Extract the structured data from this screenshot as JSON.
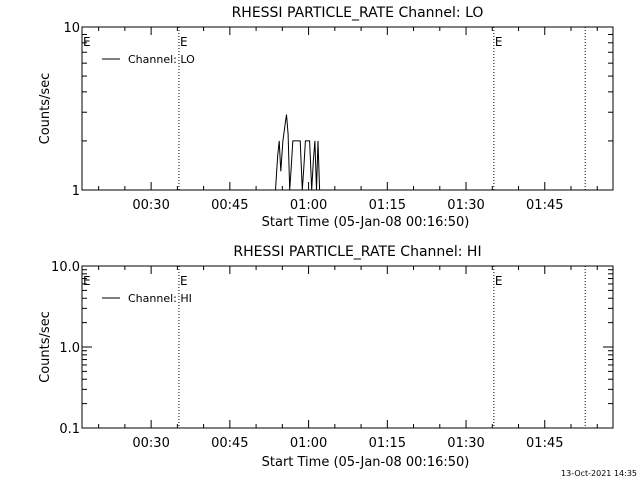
{
  "chart_data": [
    {
      "type": "line",
      "title": "RHESSI PARTICLE_RATE Channel: LO",
      "xlabel": "Start Time (05-Jan-08 00:16:50)",
      "ylabel": "Counts/sec",
      "yscale": "log",
      "ylim": [
        1,
        10
      ],
      "xlim_minutes_after_midnight": [
        16.83,
        118.0
      ],
      "x_ticks": [
        {
          "label": "00:30",
          "min": 30
        },
        {
          "label": "00:45",
          "min": 45
        },
        {
          "label": "01:00",
          "min": 60
        },
        {
          "label": "01:15",
          "min": 75
        },
        {
          "label": "01:30",
          "min": 90
        },
        {
          "label": "01:45",
          "min": 105
        }
      ],
      "y_ticks": [
        {
          "label": "10",
          "value": 10
        },
        {
          "label": "1",
          "value": 1
        }
      ],
      "vertical_markers": [
        {
          "min": 35.3,
          "label": "E"
        },
        {
          "min": 95.3,
          "label": "E"
        },
        {
          "min": 112.7,
          "label": ""
        }
      ],
      "edge_marker_label": "E",
      "legend": {
        "entry": "Channel: LO",
        "placement": "top-left"
      },
      "series": [
        {
          "name": "Channel: LO",
          "points": [
            [
              53.7,
              1.0
            ],
            [
              54.1,
              1.6
            ],
            [
              54.4,
              2.0
            ],
            [
              54.7,
              1.3
            ],
            [
              55.1,
              2.0
            ],
            [
              55.5,
              2.5
            ],
            [
              55.8,
              2.9
            ],
            [
              56.1,
              2.2
            ],
            [
              56.4,
              1.0
            ],
            [
              56.7,
              1.4
            ],
            [
              57.0,
              2.0
            ],
            [
              57.8,
              2.0
            ],
            [
              58.4,
              2.0
            ],
            [
              58.8,
              1.0
            ],
            [
              59.1,
              1.4
            ],
            [
              59.4,
              2.0
            ],
            [
              60.2,
              2.0
            ],
            [
              60.6,
              1.0
            ],
            [
              60.9,
              1.5
            ],
            [
              61.2,
              2.0
            ],
            [
              61.5,
              1.0
            ],
            [
              61.8,
              2.0
            ],
            [
              62.1,
              1.0
            ]
          ]
        }
      ]
    },
    {
      "type": "line",
      "title": "RHESSI PARTICLE_RATE Channel: HI",
      "xlabel": "Start Time (05-Jan-08 00:16:50)",
      "ylabel": "Counts/sec",
      "yscale": "log",
      "ylim": [
        0.1,
        10
      ],
      "xlim_minutes_after_midnight": [
        16.83,
        118.0
      ],
      "x_ticks": [
        {
          "label": "00:30",
          "min": 30
        },
        {
          "label": "00:45",
          "min": 45
        },
        {
          "label": "01:00",
          "min": 60
        },
        {
          "label": "01:15",
          "min": 75
        },
        {
          "label": "01:30",
          "min": 90
        },
        {
          "label": "01:45",
          "min": 105
        }
      ],
      "y_ticks": [
        {
          "label": "10.0",
          "value": 10
        },
        {
          "label": "1.0",
          "value": 1
        },
        {
          "label": "0.1",
          "value": 0.1
        }
      ],
      "vertical_markers": [
        {
          "min": 35.3,
          "label": "E"
        },
        {
          "min": 95.3,
          "label": "E"
        },
        {
          "min": 112.7,
          "label": ""
        }
      ],
      "edge_marker_label": "E",
      "legend": {
        "entry": "Channel: HI",
        "placement": "top-left"
      },
      "series": [
        {
          "name": "Channel: HI",
          "points": []
        }
      ]
    }
  ],
  "footer": {
    "timestamp": "13-Oct-2021 14:35"
  }
}
